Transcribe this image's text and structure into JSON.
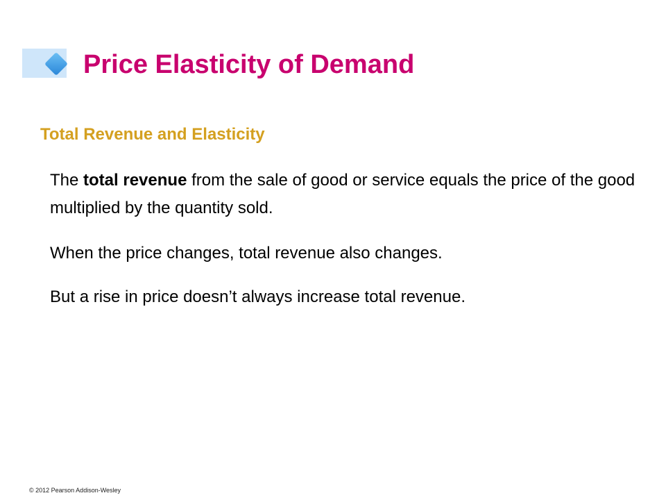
{
  "slide": {
    "title": "Price Elasticity of Demand",
    "subtitle": "Total Revenue and Elasticity",
    "paragraphs": {
      "p1": {
        "before": "The ",
        "bold": "total revenue",
        "after": " from the sale of good or service equals the price of the good multiplied by the quantity sold."
      },
      "p2": "When the price changes, total revenue also changes.",
      "p3": "But a rise in price doesn’t always increase total revenue."
    },
    "footer": "© 2012 Pearson Addison-Wesley"
  },
  "colors": {
    "title": "#c8006e",
    "subtitle": "#d4a020",
    "accent_bar": "#cfe6fa",
    "diamond": "#3a9ee8"
  },
  "icons": {
    "title_marker": "diamond-icon"
  }
}
